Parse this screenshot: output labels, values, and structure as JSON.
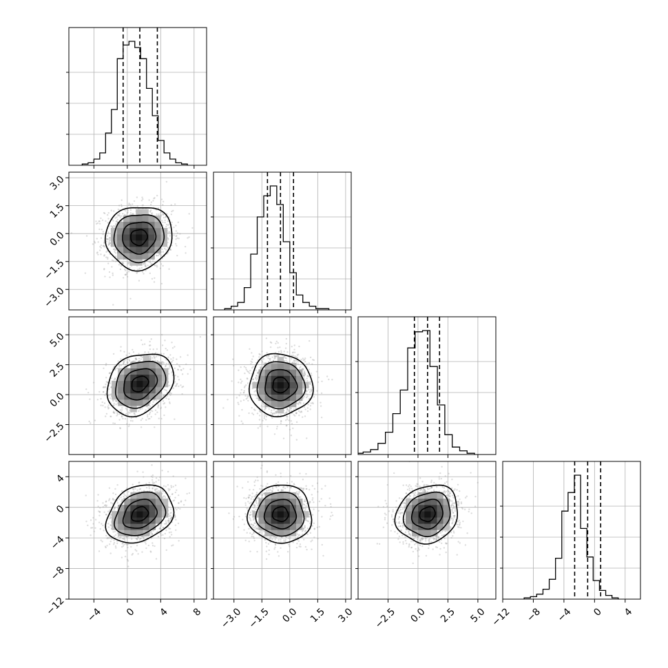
{
  "chart_data": {
    "type": "corner",
    "grid": true,
    "params": [
      {
        "range": [
          -7,
          9.5
        ],
        "ticks": [
          -4,
          0,
          4,
          8
        ],
        "tick_labels": [
          "−4",
          "0",
          "4",
          "8"
        ]
      },
      {
        "range": [
          -4.1,
          3.3
        ],
        "ticks": [
          -3.0,
          -1.5,
          0.0,
          1.5,
          3.0
        ],
        "tick_labels": [
          "−3.0",
          "−1.5",
          "0.0",
          "1.5",
          "3.0"
        ]
      },
      {
        "range": [
          -5,
          6.5
        ],
        "ticks": [
          -2.5,
          0.0,
          2.5,
          5.0
        ],
        "tick_labels": [
          "−2.5",
          "0.0",
          "2.5",
          "5.0"
        ]
      },
      {
        "range": [
          -12,
          6
        ],
        "ticks": [
          -12,
          -8,
          -4,
          0,
          4
        ],
        "tick_labels": [
          "−12",
          "−8",
          "−4",
          "0",
          "4"
        ]
      }
    ],
    "quantiles": [
      [
        -0.5,
        1.5,
        3.6
      ],
      [
        -1.2,
        -0.5,
        0.2
      ],
      [
        -0.3,
        0.8,
        1.8
      ],
      [
        -2.6,
        -0.9,
        0.8
      ]
    ],
    "histograms": [
      {
        "edges_from": -5.4,
        "bin": 0.7,
        "counts": [
          0.01,
          0.02,
          0.05,
          0.1,
          0.26,
          0.45,
          0.86,
          0.97,
          1.0,
          0.95,
          0.86,
          0.62,
          0.4,
          0.2,
          0.1,
          0.05,
          0.02,
          0.01
        ]
      },
      {
        "edges_from": -3.5,
        "bin": 0.35,
        "counts": [
          0.01,
          0.03,
          0.06,
          0.18,
          0.45,
          0.75,
          0.92,
          1.0,
          0.85,
          0.55,
          0.3,
          0.12,
          0.06,
          0.03,
          0.01,
          0.01
        ]
      },
      {
        "edges_from": -5.2,
        "bin": 0.62,
        "counts": [
          0.01,
          0.02,
          0.04,
          0.09,
          0.18,
          0.33,
          0.52,
          0.86,
          0.99,
          1.0,
          0.71,
          0.4,
          0.16,
          0.06,
          0.03,
          0.01
        ]
      },
      {
        "edges_from": -9.2,
        "bin": 0.82,
        "counts": [
          0.01,
          0.02,
          0.04,
          0.08,
          0.16,
          0.33,
          0.71,
          0.86,
          1.0,
          0.57,
          0.34,
          0.15,
          0.07,
          0.03,
          0.01
        ]
      }
    ],
    "pairs": [
      {
        "row": 1,
        "col": 0,
        "center": [
          1.4,
          -0.2
        ],
        "sigma": [
          2.0,
          0.85
        ],
        "rho": 0.05
      },
      {
        "row": 2,
        "col": 0,
        "center": [
          1.5,
          0.9
        ],
        "sigma": [
          2.0,
          1.3
        ],
        "rho": 0.25
      },
      {
        "row": 2,
        "col": 1,
        "center": [
          -0.5,
          0.8
        ],
        "sigma": [
          0.85,
          1.3
        ],
        "rho": 0.0
      },
      {
        "row": 3,
        "col": 0,
        "center": [
          1.5,
          -0.9
        ],
        "sigma": [
          2.0,
          1.9
        ],
        "rho": 0.25
      },
      {
        "row": 3,
        "col": 1,
        "center": [
          -0.5,
          -0.9
        ],
        "sigma": [
          0.85,
          1.9
        ],
        "rho": 0.0
      },
      {
        "row": 3,
        "col": 2,
        "center": [
          0.8,
          -0.9
        ],
        "sigma": [
          1.3,
          1.9
        ],
        "rho": 0.15
      }
    ],
    "contour_levels_sigma": [
      0.5,
      1.0,
      1.5,
      2.0
    ]
  }
}
